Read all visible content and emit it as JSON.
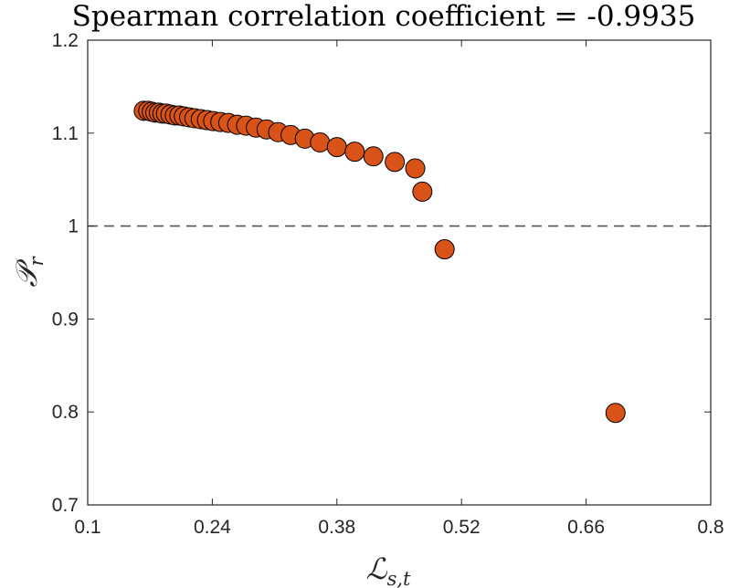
{
  "chart_data": {
    "type": "scatter",
    "title": "Spearman correlation coefficient = -0.9935",
    "xlabel": {
      "main": "ℒ",
      "sub": "s,t"
    },
    "ylabel": {
      "main": "𝒫",
      "sub": "r"
    },
    "xlim": [
      0.1,
      0.8
    ],
    "ylim": [
      0.7,
      1.2
    ],
    "xticks": [
      "0.1",
      "0.24",
      "0.38",
      "0.52",
      "0.66",
      "0.8"
    ],
    "xtick_values": [
      0.1,
      0.24,
      0.38,
      0.52,
      0.66,
      0.8
    ],
    "yticks": [
      "0.7",
      "0.8",
      "0.9",
      "1",
      "1.1",
      "1.2"
    ],
    "ytick_values": [
      0.7,
      0.8,
      0.9,
      1.0,
      1.1,
      1.2
    ],
    "reference_line": {
      "y": 1.0,
      "style": "dashed"
    },
    "marker_color": "#D95319",
    "grid": false,
    "series": [
      {
        "name": "points",
        "points": [
          {
            "x": 0.163,
            "y": 1.124
          },
          {
            "x": 0.168,
            "y": 1.124
          },
          {
            "x": 0.172,
            "y": 1.123
          },
          {
            "x": 0.176,
            "y": 1.122
          },
          {
            "x": 0.18,
            "y": 1.122
          },
          {
            "x": 0.184,
            "y": 1.121
          },
          {
            "x": 0.188,
            "y": 1.121
          },
          {
            "x": 0.193,
            "y": 1.12
          },
          {
            "x": 0.198,
            "y": 1.119
          },
          {
            "x": 0.203,
            "y": 1.119
          },
          {
            "x": 0.208,
            "y": 1.118
          },
          {
            "x": 0.214,
            "y": 1.117
          },
          {
            "x": 0.22,
            "y": 1.116
          },
          {
            "x": 0.227,
            "y": 1.115
          },
          {
            "x": 0.234,
            "y": 1.114
          },
          {
            "x": 0.241,
            "y": 1.113
          },
          {
            "x": 0.249,
            "y": 1.112
          },
          {
            "x": 0.258,
            "y": 1.111
          },
          {
            "x": 0.268,
            "y": 1.109
          },
          {
            "x": 0.278,
            "y": 1.108
          },
          {
            "x": 0.289,
            "y": 1.106
          },
          {
            "x": 0.301,
            "y": 1.104
          },
          {
            "x": 0.314,
            "y": 1.101
          },
          {
            "x": 0.328,
            "y": 1.098
          },
          {
            "x": 0.344,
            "y": 1.094
          },
          {
            "x": 0.361,
            "y": 1.09
          },
          {
            "x": 0.38,
            "y": 1.085
          },
          {
            "x": 0.4,
            "y": 1.08
          },
          {
            "x": 0.421,
            "y": 1.075
          },
          {
            "x": 0.445,
            "y": 1.069
          },
          {
            "x": 0.468,
            "y": 1.062
          },
          {
            "x": 0.476,
            "y": 1.037
          },
          {
            "x": 0.501,
            "y": 0.975
          },
          {
            "x": 0.693,
            "y": 0.799
          }
        ]
      }
    ]
  }
}
